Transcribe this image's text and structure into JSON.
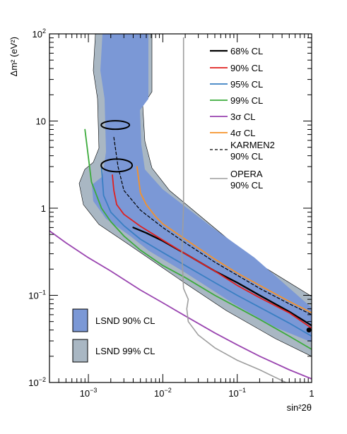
{
  "chart_data": {
    "type": "line",
    "title": "",
    "xlabel": "sin²2θ",
    "ylabel": "Δm² (eV²)",
    "x_scale": "log",
    "y_scale": "log",
    "xlim": [
      0.0003,
      1
    ],
    "ylim": [
      0.01,
      100
    ],
    "x_ticks": [
      {
        "value": 0.001,
        "base": "10",
        "exp": "−3"
      },
      {
        "value": 0.01,
        "base": "10",
        "exp": "−2"
      },
      {
        "value": 0.1,
        "base": "10",
        "exp": "−1"
      },
      {
        "value": 1,
        "base": "1",
        "exp": ""
      }
    ],
    "y_ticks": [
      {
        "value": 0.01,
        "base": "10",
        "exp": "−2"
      },
      {
        "value": 0.1,
        "base": "10",
        "exp": "−1"
      },
      {
        "value": 1,
        "base": "1",
        "exp": ""
      },
      {
        "value": 10,
        "base": "10",
        "exp": ""
      },
      {
        "value": 100,
        "base": "10",
        "exp": "2"
      }
    ],
    "grid": false,
    "legend_position": "top-right",
    "best_fit_point": {
      "x": 0.92,
      "y": 0.04
    },
    "series": [
      {
        "name": "68% CL",
        "color": "#000000",
        "dash": "solid",
        "width": 2.2,
        "x": [
          0.004,
          0.006,
          0.01,
          0.02,
          0.05,
          0.1,
          0.2,
          0.5,
          1
        ],
        "y": [
          0.6,
          0.52,
          0.42,
          0.3,
          0.19,
          0.14,
          0.1,
          0.065,
          0.045
        ]
      },
      {
        "name": "90% CL",
        "color": "#e0201f",
        "dash": "solid",
        "width": 1.8,
        "x": [
          0.0021,
          0.0022,
          0.0024,
          0.003,
          0.005,
          0.01,
          0.02,
          0.05,
          0.1,
          0.2,
          0.5,
          1
        ],
        "y": [
          2.4,
          1.6,
          1.1,
          0.85,
          0.62,
          0.43,
          0.3,
          0.19,
          0.13,
          0.094,
          0.063,
          0.042
        ]
      },
      {
        "name": "95% CL",
        "color": "#3a7fc3",
        "dash": "solid",
        "width": 1.8,
        "x": [
          0.0015,
          0.0016,
          0.002,
          0.003,
          0.005,
          0.01,
          0.02,
          0.05,
          0.1,
          0.2,
          0.5,
          1
        ],
        "y": [
          3.0,
          1.4,
          0.9,
          0.63,
          0.44,
          0.31,
          0.22,
          0.14,
          0.1,
          0.073,
          0.048,
          0.034
        ]
      },
      {
        "name": "99% CL",
        "color": "#3cab3c",
        "dash": "solid",
        "width": 1.8,
        "x": [
          0.0009,
          0.0011,
          0.0015,
          0.002,
          0.003,
          0.005,
          0.01,
          0.02,
          0.05,
          0.1,
          0.2,
          0.5,
          1
        ],
        "y": [
          8.0,
          2.0,
          1.0,
          0.7,
          0.48,
          0.33,
          0.22,
          0.16,
          0.1,
          0.073,
          0.053,
          0.034,
          0.024
        ]
      },
      {
        "name": "3σ CL",
        "color": "#9a45b0",
        "dash": "solid",
        "width": 1.8,
        "x": [
          0.0003,
          0.0005,
          0.001,
          0.002,
          0.005,
          0.01,
          0.02,
          0.05,
          0.1,
          0.2,
          0.5,
          1
        ],
        "y": [
          0.55,
          0.4,
          0.27,
          0.19,
          0.115,
          0.082,
          0.058,
          0.037,
          0.027,
          0.02,
          0.014,
          0.011
        ]
      },
      {
        "name": "4σ CL",
        "color": "#f5922a",
        "dash": "solid",
        "width": 1.8,
        "x": [
          0.0045,
          0.005,
          0.006,
          0.008,
          0.01,
          0.02,
          0.05,
          0.1,
          0.2,
          0.5,
          1
        ],
        "y": [
          3.0,
          1.5,
          1.1,
          0.8,
          0.66,
          0.44,
          0.26,
          0.18,
          0.13,
          0.085,
          0.063
        ]
      },
      {
        "name": "KARMEN2\n90% CL",
        "color": "#000000",
        "dash": "4,3",
        "width": 1.2,
        "x": [
          0.0022,
          0.0025,
          0.003,
          0.005,
          0.01,
          0.02,
          0.05,
          0.1,
          0.2,
          0.5,
          1
        ],
        "y": [
          6.5,
          3.0,
          1.6,
          0.95,
          0.6,
          0.4,
          0.24,
          0.17,
          0.12,
          0.08,
          0.06
        ]
      },
      {
        "name": "OPERA\n90% CL",
        "color": "#9e9e9e",
        "dash": "solid",
        "width": 1.6,
        "x": [
          0.019,
          0.019,
          0.019,
          0.019,
          0.019,
          0.018,
          0.019,
          0.022,
          0.021,
          0.022,
          0.03,
          0.05,
          0.1,
          0.2,
          0.45
        ],
        "y": [
          90,
          30,
          10,
          3,
          1,
          0.3,
          0.12,
          0.09,
          0.07,
          0.05,
          0.035,
          0.025,
          0.018,
          0.014,
          0.01
        ]
      }
    ],
    "regions": [
      {
        "name": "LSND 99% CL",
        "color": "#a9b7c3"
      },
      {
        "name": "LSND 90% CL",
        "color": "#7b98d6"
      }
    ]
  }
}
